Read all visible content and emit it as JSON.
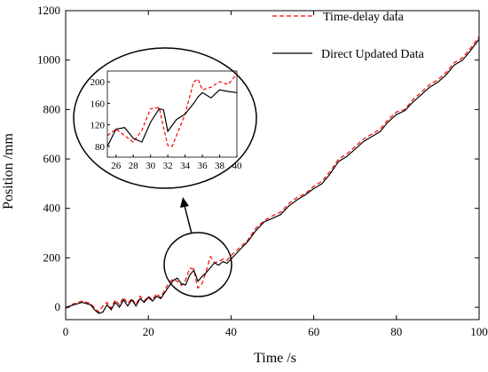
{
  "chart_data": {
    "type": "line",
    "xlabel": "Time /s",
    "ylabel": "Position /mm",
    "xlim": [
      0,
      100
    ],
    "ylim": [
      -50,
      1200
    ],
    "xticks": [
      0,
      20,
      40,
      60,
      80,
      100
    ],
    "yticks": [
      0,
      200,
      400,
      600,
      800,
      1000,
      1200
    ],
    "legend_placement": "top-right",
    "grid": false,
    "series": [
      {
        "name": "Time-delay data",
        "style": "dashed",
        "color": "#ff0000",
        "points": [
          [
            0,
            -5
          ],
          [
            2,
            15
          ],
          [
            4,
            25
          ],
          [
            6,
            15
          ],
          [
            8,
            -20
          ],
          [
            9,
            5
          ],
          [
            10,
            20
          ],
          [
            11,
            -5
          ],
          [
            12,
            30
          ],
          [
            13,
            10
          ],
          [
            14,
            40
          ],
          [
            15,
            15
          ],
          [
            16,
            35
          ],
          [
            17,
            10
          ],
          [
            18,
            45
          ],
          [
            19,
            25
          ],
          [
            20,
            45
          ],
          [
            21,
            30
          ],
          [
            22,
            55
          ],
          [
            23,
            40
          ],
          [
            24,
            70
          ],
          [
            25,
            100
          ],
          [
            26,
            115
          ],
          [
            27,
            105
          ],
          [
            28,
            88
          ],
          [
            29,
            110
          ],
          [
            30,
            158
          ],
          [
            31,
            155
          ],
          [
            31.5,
            110
          ],
          [
            32,
            78
          ],
          [
            33,
            95
          ],
          [
            34,
            145
          ],
          [
            35,
            205
          ],
          [
            36,
            180
          ],
          [
            37,
            185
          ],
          [
            38,
            195
          ],
          [
            39,
            190
          ],
          [
            40,
            210
          ],
          [
            42,
            240
          ],
          [
            44,
            270
          ],
          [
            46,
            320
          ],
          [
            48,
            350
          ],
          [
            50,
            370
          ],
          [
            52,
            385
          ],
          [
            54,
            420
          ],
          [
            56,
            445
          ],
          [
            58,
            460
          ],
          [
            60,
            490
          ],
          [
            62,
            510
          ],
          [
            64,
            550
          ],
          [
            66,
            600
          ],
          [
            68,
            620
          ],
          [
            70,
            650
          ],
          [
            72,
            680
          ],
          [
            74,
            700
          ],
          [
            76,
            720
          ],
          [
            78,
            760
          ],
          [
            80,
            790
          ],
          [
            82,
            800
          ],
          [
            84,
            840
          ],
          [
            86,
            870
          ],
          [
            88,
            900
          ],
          [
            90,
            920
          ],
          [
            92,
            950
          ],
          [
            94,
            990
          ],
          [
            96,
            1010
          ],
          [
            98,
            1050
          ],
          [
            100,
            1095
          ]
        ]
      },
      {
        "name": "Direct Updated Data",
        "style": "solid",
        "color": "#000000",
        "points": [
          [
            0,
            0
          ],
          [
            2,
            10
          ],
          [
            4,
            20
          ],
          [
            6,
            10
          ],
          [
            7,
            -10
          ],
          [
            8,
            -25
          ],
          [
            9,
            -20
          ],
          [
            10,
            10
          ],
          [
            11,
            -10
          ],
          [
            12,
            20
          ],
          [
            13,
            0
          ],
          [
            14,
            30
          ],
          [
            15,
            5
          ],
          [
            16,
            30
          ],
          [
            17,
            5
          ],
          [
            18,
            35
          ],
          [
            19,
            20
          ],
          [
            20,
            40
          ],
          [
            21,
            25
          ],
          [
            22,
            45
          ],
          [
            23,
            35
          ],
          [
            24,
            60
          ],
          [
            25,
            85
          ],
          [
            26,
            108
          ],
          [
            27,
            118
          ],
          [
            28,
            95
          ],
          [
            29,
            90
          ],
          [
            30,
            130
          ],
          [
            31,
            150
          ],
          [
            32,
            105
          ],
          [
            33,
            125
          ],
          [
            34,
            140
          ],
          [
            35,
            160
          ],
          [
            36,
            180
          ],
          [
            37,
            170
          ],
          [
            38,
            185
          ],
          [
            39,
            178
          ],
          [
            40,
            195
          ],
          [
            42,
            230
          ],
          [
            44,
            265
          ],
          [
            46,
            310
          ],
          [
            48,
            345
          ],
          [
            50,
            360
          ],
          [
            52,
            375
          ],
          [
            54,
            410
          ],
          [
            56,
            435
          ],
          [
            58,
            455
          ],
          [
            60,
            480
          ],
          [
            62,
            500
          ],
          [
            64,
            540
          ],
          [
            66,
            590
          ],
          [
            68,
            610
          ],
          [
            70,
            640
          ],
          [
            72,
            670
          ],
          [
            74,
            690
          ],
          [
            76,
            710
          ],
          [
            78,
            750
          ],
          [
            80,
            780
          ],
          [
            82,
            795
          ],
          [
            84,
            830
          ],
          [
            86,
            860
          ],
          [
            88,
            890
          ],
          [
            90,
            910
          ],
          [
            92,
            940
          ],
          [
            94,
            980
          ],
          [
            96,
            1000
          ],
          [
            98,
            1040
          ],
          [
            100,
            1085
          ]
        ]
      }
    ],
    "inset": {
      "xlim": [
        25,
        40
      ],
      "ylim": [
        60,
        220
      ],
      "xticks": [
        26,
        28,
        30,
        32,
        34,
        36,
        38,
        40
      ],
      "yticks": [
        80,
        120,
        160,
        200
      ],
      "series": [
        {
          "style": "dashed",
          "color": "#ff0000",
          "points": [
            [
              25,
              100
            ],
            [
              26,
              112
            ],
            [
              27,
              100
            ],
            [
              28,
              88
            ],
            [
              29,
              110
            ],
            [
              30,
              150
            ],
            [
              31,
              152
            ],
            [
              31.5,
              115
            ],
            [
              32,
              82
            ],
            [
              32.5,
              80
            ],
            [
              33,
              100
            ],
            [
              34,
              140
            ],
            [
              35,
              200
            ],
            [
              35.5,
              205
            ],
            [
              36,
              185
            ],
            [
              37,
              190
            ],
            [
              38,
              200
            ],
            [
              39,
              195
            ],
            [
              40,
              215
            ]
          ]
        },
        {
          "style": "solid",
          "color": "#000000",
          "points": [
            [
              25,
              80
            ],
            [
              26,
              112
            ],
            [
              27,
              115
            ],
            [
              28,
              95
            ],
            [
              29,
              88
            ],
            [
              30,
              125
            ],
            [
              31,
              150
            ],
            [
              31.5,
              148
            ],
            [
              32,
              108
            ],
            [
              33,
              130
            ],
            [
              34,
              140
            ],
            [
              35,
              160
            ],
            [
              35.5,
              172
            ],
            [
              36,
              180
            ],
            [
              37,
              170
            ],
            [
              38,
              185
            ],
            [
              39,
              182
            ],
            [
              40,
              180
            ]
          ]
        }
      ]
    }
  }
}
